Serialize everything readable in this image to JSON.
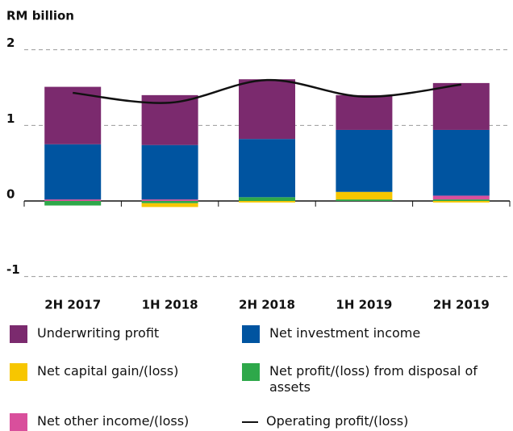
{
  "chart_data": {
    "type": "bar",
    "stacked": true,
    "y_label": "RM billion",
    "categories": [
      "2H 2017",
      "1H 2018",
      "2H 2018",
      "1H 2019",
      "2H 2019"
    ],
    "series": [
      {
        "name": "Underwriting profit",
        "color": "#7b2a6e",
        "values": [
          0.76,
          0.66,
          0.79,
          0.46,
          0.62
        ]
      },
      {
        "name": "Net investment income",
        "color": "#0054a0",
        "values": [
          0.73,
          0.72,
          0.77,
          0.82,
          0.87
        ]
      },
      {
        "name": "Net capital gain/(loss)",
        "color": "#f7c600",
        "values": [
          0,
          -0.05,
          -0.02,
          0.1,
          -0.02
        ]
      },
      {
        "name": "Net profit/(loss) from disposal of assets",
        "color": "#2ea84a",
        "values": [
          -0.06,
          -0.03,
          0.05,
          0.02,
          0.02
        ]
      },
      {
        "name": "Net other income/(loss)",
        "color": "#d94f9c",
        "values": [
          0.02,
          0.02,
          0,
          0,
          0.05
        ]
      },
      {
        "name": "Operating profit/(loss)",
        "type": "line",
        "color": "#111111",
        "values": [
          1.43,
          1.3,
          1.6,
          1.38,
          1.54
        ]
      }
    ],
    "ylim": [
      -1.1,
      2.05
    ],
    "yticks": [
      -1,
      0,
      1,
      2
    ],
    "grid": true
  }
}
